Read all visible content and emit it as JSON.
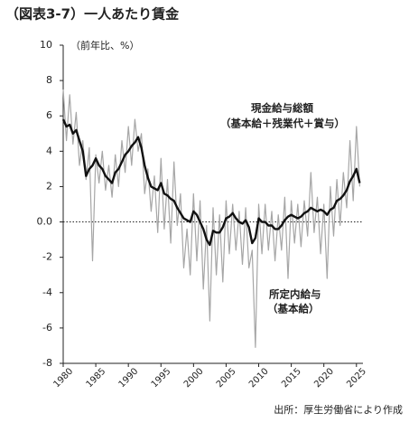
{
  "chart_data": {
    "type": "line",
    "title": "（図表3-7）一人あたり賃金",
    "y_unit": "（前年比、%）",
    "source": "出所：厚生労働省により作成",
    "annotations": [
      "（基本給＋残業代＋賞与）",
      "（基本給）"
    ],
    "x": [
      1980,
      1980.5,
      1981,
      1981.5,
      1982,
      1982.5,
      1983,
      1983.5,
      1984,
      1984.5,
      1985,
      1985.5,
      1986,
      1986.5,
      1987,
      1987.5,
      1988,
      1988.5,
      1989,
      1989.5,
      1990,
      1990.5,
      1991,
      1991.5,
      1992,
      1992.5,
      1993,
      1993.5,
      1994,
      1994.5,
      1995,
      1995.5,
      1996,
      1996.5,
      1997,
      1997.5,
      1998,
      1998.5,
      1999,
      1999.5,
      2000,
      2000.5,
      2001,
      2001.5,
      2002,
      2002.5,
      2003,
      2003.5,
      2004,
      2004.5,
      2005,
      2005.5,
      2006,
      2006.5,
      2007,
      2007.5,
      2008,
      2008.5,
      2009,
      2009.5,
      2010,
      2010.5,
      2011,
      2011.5,
      2012,
      2012.5,
      2013,
      2013.5,
      2014,
      2014.5,
      2015,
      2015.5,
      2016,
      2016.5,
      2017,
      2017.5,
      2018,
      2018.5,
      2019,
      2019.5,
      2020,
      2020.5,
      2021,
      2021.5,
      2022,
      2022.5,
      2023,
      2023.5,
      2024,
      2024.5,
      2025,
      2025.5
    ],
    "series": [
      {
        "name": "現金給与総額",
        "color": "#a6a6a6",
        "values": [
          7.5,
          4.6,
          7.2,
          4.4,
          6.2,
          3.2,
          4.6,
          2.4,
          4.2,
          -2.2,
          3.8,
          2.2,
          4.0,
          1.8,
          3.2,
          1.4,
          3.8,
          2.0,
          4.6,
          2.8,
          5.4,
          3.2,
          5.8,
          4.0,
          5.0,
          1.6,
          3.0,
          0.6,
          2.6,
          -0.6,
          3.6,
          -0.4,
          2.4,
          -1.2,
          3.4,
          -0.2,
          1.6,
          -2.6,
          -0.4,
          -3.0,
          1.6,
          -2.2,
          1.2,
          -3.8,
          -0.2,
          -5.6,
          0.8,
          -3.0,
          0.4,
          -3.4,
          1.2,
          -1.8,
          1.0,
          -1.6,
          0.6,
          -2.4,
          0.8,
          -2.6,
          -1.6,
          -7.1,
          1.0,
          -1.8,
          1.0,
          -1.6,
          0.6,
          -2.2,
          0.4,
          -1.6,
          1.4,
          -3.2,
          1.2,
          -1.2,
          1.0,
          -1.4,
          1.2,
          -0.8,
          2.8,
          -0.6,
          1.4,
          -1.8,
          1.0,
          -3.2,
          2.0,
          -0.8,
          2.4,
          -0.2,
          2.8,
          0.8,
          4.6,
          1.2,
          5.4,
          2.0
        ]
      },
      {
        "name": "所定内給与",
        "color": "#111111",
        "values": [
          5.8,
          5.4,
          5.5,
          5.0,
          5.2,
          4.6,
          4.0,
          2.6,
          3.0,
          3.2,
          3.6,
          3.2,
          3.0,
          2.6,
          2.4,
          2.2,
          2.8,
          3.0,
          3.4,
          3.8,
          4.0,
          4.3,
          4.5,
          4.8,
          4.2,
          3.2,
          2.5,
          2.0,
          1.9,
          1.8,
          2.2,
          1.6,
          1.5,
          1.3,
          1.2,
          0.8,
          0.5,
          0.2,
          0.1,
          0.0,
          0.6,
          0.4,
          0.0,
          -0.4,
          -1.0,
          -1.3,
          -0.5,
          -0.6,
          -0.6,
          -0.3,
          0.2,
          0.3,
          0.5,
          0.2,
          0.0,
          -0.1,
          0.1,
          -0.3,
          -1.2,
          -0.9,
          0.2,
          0.0,
          0.0,
          -0.2,
          -0.2,
          -0.4,
          -0.4,
          -0.2,
          0.1,
          0.3,
          0.4,
          0.3,
          0.2,
          0.3,
          0.5,
          0.6,
          0.8,
          0.7,
          0.6,
          0.7,
          0.6,
          0.4,
          0.7,
          0.8,
          1.2,
          1.3,
          1.5,
          1.8,
          2.3,
          2.6,
          3.0,
          2.2
        ]
      }
    ],
    "xlim": [
      1980,
      2026
    ],
    "xticks": [
      1980,
      1985,
      1990,
      1995,
      2000,
      2005,
      2010,
      2015,
      2020,
      2025
    ],
    "ylim": [
      -8,
      10
    ],
    "yticks": [
      -8,
      -6,
      -4,
      -2,
      {
        "value": 0,
        "label": "0.0"
      },
      2,
      4,
      6,
      8,
      10
    ],
    "reference_line": 0
  }
}
